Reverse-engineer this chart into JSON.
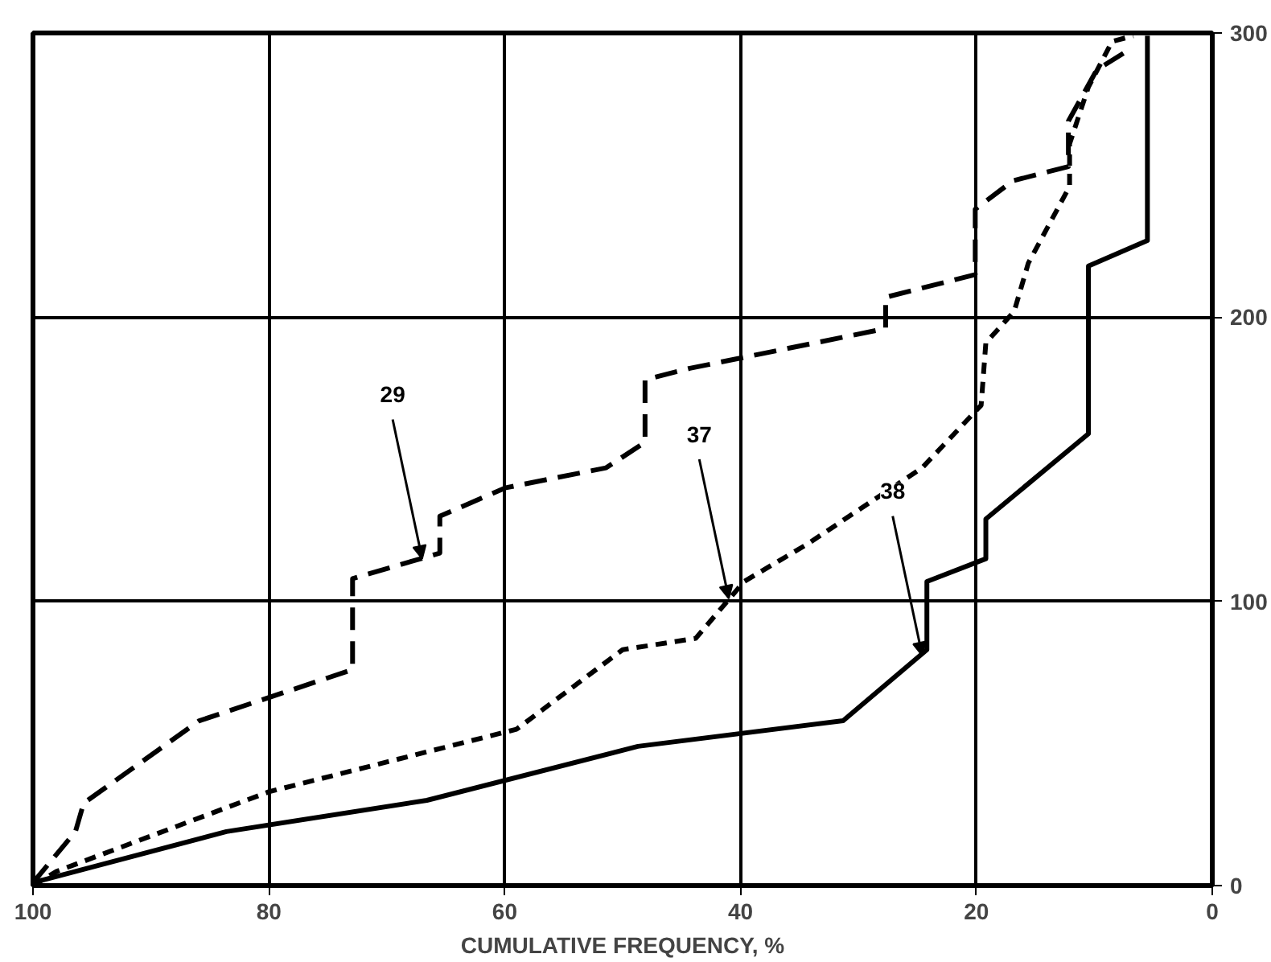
{
  "chart_data": {
    "type": "line",
    "xlabel": "CUMULATIVE FREQUENCY, %",
    "xlim": [
      100,
      0
    ],
    "ylim": [
      0,
      300
    ],
    "xticks": [
      100,
      80,
      60,
      40,
      20,
      0
    ],
    "yticks": [
      0,
      100,
      200,
      300
    ],
    "grid": true,
    "marker": "none",
    "series": [
      {
        "color": "#000000",
        "line_style": "dashed",
        "x": [
          100,
          96.4,
          95.7,
          85.9,
          72.9,
          72.9,
          65.5,
          65.5,
          59.9,
          51.4,
          48.1,
          48.1,
          44.3,
          27.7,
          27.7,
          20.1,
          20.1,
          16.9,
          12.2,
          12.2,
          9.8,
          7.1
        ],
        "values": [
          1,
          19,
          29,
          58,
          76,
          108,
          117,
          130,
          140,
          147,
          156,
          178,
          182,
          196,
          207,
          215,
          238,
          248,
          253,
          269,
          287,
          294
        ]
      },
      {
        "color": "#000000",
        "line_style": "dotted",
        "x": [
          100,
          98,
          80,
          59,
          50,
          43.8,
          39.7,
          34.4,
          24.6,
          19.6,
          19.2,
          16.8,
          15.6,
          12.1,
          12.1,
          10.5,
          8.5,
          6.7
        ],
        "values": [
          0,
          5,
          33,
          55,
          83,
          87,
          107,
          120,
          147,
          169,
          191,
          202,
          219,
          246,
          261,
          281,
          297,
          299
        ]
      },
      {
        "color": "#000000",
        "line_style": "solid",
        "x": [
          100,
          83.6,
          66.6,
          48.7,
          31.3,
          24.2,
          24.2,
          19.2,
          19.2,
          10.5,
          10.5,
          5.5,
          5.5
        ],
        "values": [
          1,
          19,
          30,
          49,
          58,
          83,
          107,
          115,
          129,
          159,
          218,
          227,
          299
        ]
      }
    ],
    "annotations": [
      {
        "text": "29",
        "x": 67,
        "y": 115
      },
      {
        "text": "37",
        "x": 41,
        "y": 101
      },
      {
        "text": "38",
        "x": 24.6,
        "y": 81
      }
    ]
  }
}
